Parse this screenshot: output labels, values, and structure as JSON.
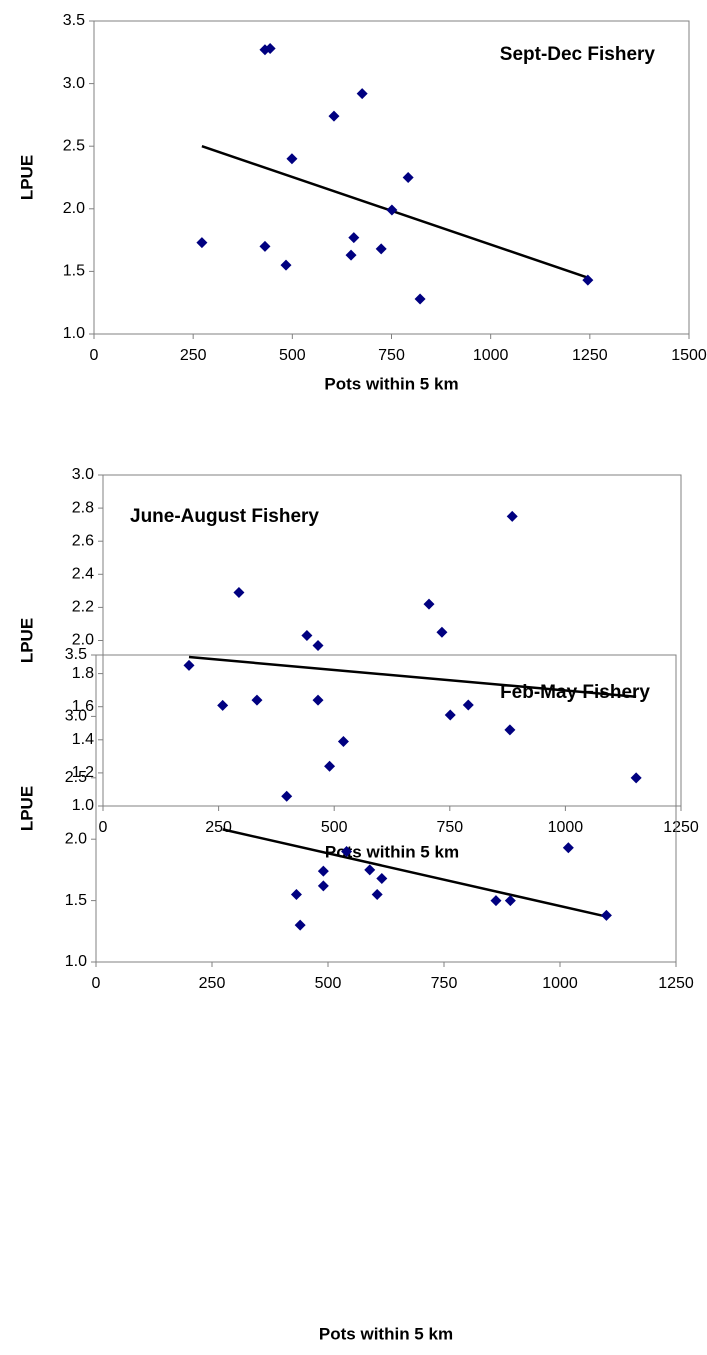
{
  "chart_data": [
    {
      "type": "scatter",
      "annotation": "Sept-Dec Fishery",
      "xlabel": "Pots within 5 km",
      "ylabel": "LPUE",
      "color": "#000080",
      "x": [
        272,
        431,
        444,
        499,
        605,
        676,
        431,
        484,
        655,
        648,
        724,
        751,
        792,
        822,
        1245
      ],
      "values": [
        1.73,
        3.27,
        3.28,
        2.4,
        2.74,
        2.92,
        1.7,
        1.55,
        1.77,
        1.63,
        1.68,
        1.99,
        2.25,
        1.28,
        1.43
      ],
      "trendline": {
        "color": "#000000",
        "x": [
          272,
          1245
        ],
        "values": [
          2.5,
          1.45
        ]
      },
      "xlim": [
        0,
        1500
      ],
      "xticks": [
        0,
        250,
        500,
        750,
        1000,
        1250,
        1500
      ],
      "ylim": [
        1,
        3.5
      ],
      "yticks": [
        {
          "value": 1,
          "label": "1.0"
        },
        1.5,
        {
          "value": 2,
          "label": "2.0"
        },
        2.5,
        {
          "value": 3,
          "label": "3.0"
        },
        3.5
      ]
    },
    {
      "type": "scatter",
      "annotation": "June-August Fishery",
      "xlabel": "Pots within 5 km",
      "ylabel": "LPUE",
      "color": "#000080",
      "x": [
        186,
        294,
        333,
        441,
        465,
        465,
        520,
        490,
        705,
        733,
        751,
        790,
        880,
        885,
        1153
      ],
      "values": [
        1.85,
        2.29,
        1.64,
        2.03,
        1.97,
        1.64,
        1.39,
        1.24,
        2.22,
        2.05,
        1.55,
        1.61,
        1.46,
        2.75,
        1.17
      ],
      "trendline": {
        "color": "#000000",
        "x": [
          186,
          1153
        ],
        "values": [
          1.9,
          1.66
        ]
      },
      "xlim": [
        0,
        1250
      ],
      "xticks": [
        0,
        250,
        500,
        750,
        1000,
        1250
      ],
      "ylim": [
        1,
        3
      ],
      "yticks": [
        {
          "value": 1,
          "label": "1.0"
        },
        1.2,
        1.4,
        1.6,
        1.8,
        {
          "value": 2,
          "label": "2.0"
        },
        2.2,
        2.4,
        2.6,
        2.8,
        {
          "value": 3,
          "label": "3.0"
        }
      ]
    },
    {
      "type": "scatter",
      "annotation": "Feb-May Fishery",
      "xlabel": "Pots within 5 km",
      "ylabel": "LPUE",
      "color": "#000080",
      "x": [
        273,
        411,
        432,
        440,
        490,
        490,
        540,
        590,
        606,
        616,
        862,
        893,
        1018,
        1100
      ],
      "values": [
        3.09,
        2.35,
        1.55,
        1.3,
        1.62,
        1.74,
        1.9,
        1.75,
        1.55,
        1.68,
        1.5,
        1.5,
        1.93,
        1.38
      ],
      "trendline": {
        "color": "#000000",
        "x": [
          273,
          1100
        ],
        "values": [
          2.08,
          1.37
        ]
      },
      "xlim": [
        0,
        1250
      ],
      "xticks": [
        0,
        250,
        500,
        750,
        1000,
        1250
      ],
      "ylim": [
        1,
        3.5
      ],
      "yticks": [
        {
          "value": 1,
          "label": "1.0"
        },
        1.5,
        {
          "value": 2,
          "label": "2.0"
        },
        2.5,
        {
          "value": 3,
          "label": "3.0"
        },
        3.5
      ]
    }
  ]
}
